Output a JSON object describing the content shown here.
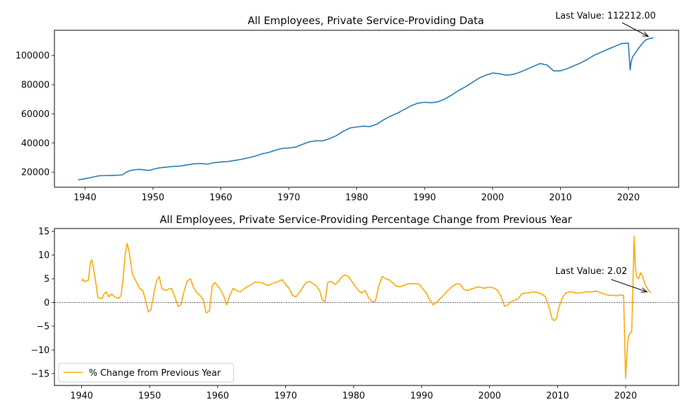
{
  "chart_data": [
    {
      "type": "line",
      "title": "All Employees, Private Service-Providing Data",
      "xlabel": "",
      "ylabel": "",
      "xlim": [
        1935.5,
        2027.4
      ],
      "ylim": [
        9700,
        117300
      ],
      "x_ticks": [
        1940,
        1950,
        1960,
        1970,
        1980,
        1990,
        2000,
        2010,
        2020
      ],
      "y_ticks": [
        20000,
        40000,
        60000,
        80000,
        100000
      ],
      "y_tick_labels": [
        "20000",
        "40000",
        "60000",
        "80000",
        "100000"
      ],
      "grid": false,
      "color": "#1f77b4",
      "annotation": {
        "text": "Last Value: 112212.00",
        "x": 2023.7,
        "y": 112212
      },
      "series": [
        {
          "name": "Private Service-Providing",
          "x": [
            1939.0,
            1940.0,
            1941.0,
            1942.0,
            1943.0,
            1944.0,
            1945.0,
            1945.5,
            1946.0,
            1946.5,
            1947.0,
            1948.0,
            1949.0,
            1949.6,
            1950.0,
            1951.0,
            1952.0,
            1953.0,
            1954.0,
            1955.0,
            1956.0,
            1957.0,
            1958.0,
            1959.0,
            1960.0,
            1961.0,
            1962.0,
            1963.0,
            1964.0,
            1965.0,
            1966.0,
            1967.0,
            1968.0,
            1969.0,
            1970.0,
            1971.0,
            1972.0,
            1973.0,
            1974.0,
            1975.0,
            1976.0,
            1977.0,
            1978.0,
            1979.0,
            1980.0,
            1981.0,
            1982.0,
            1983.0,
            1984.0,
            1985.0,
            1986.0,
            1987.0,
            1988.0,
            1989.0,
            1990.0,
            1991.0,
            1992.0,
            1993.0,
            1994.0,
            1995.0,
            1996.0,
            1997.0,
            1998.0,
            1999.0,
            2000.0,
            2001.0,
            2002.0,
            2003.0,
            2004.0,
            2005.0,
            2006.0,
            2007.0,
            2008.0,
            2009.0,
            2010.0,
            2011.0,
            2012.0,
            2013.0,
            2014.0,
            2015.0,
            2016.0,
            2017.0,
            2018.0,
            2019.0,
            2020.0,
            2020.25,
            2020.4,
            2020.6,
            2021.0,
            2021.5,
            2022.0,
            2022.5,
            2023.0,
            2023.7
          ],
          "values": [
            14800,
            15500,
            16500,
            17500,
            17700,
            17800,
            18000,
            18200,
            19800,
            20900,
            21500,
            21900,
            21400,
            21200,
            22000,
            23000,
            23500,
            24000,
            24200,
            25000,
            25700,
            26000,
            25500,
            26500,
            27000,
            27300,
            28000,
            28800,
            29800,
            31000,
            32500,
            33500,
            35000,
            36300,
            36600,
            37200,
            39000,
            40800,
            41500,
            41500,
            43000,
            45000,
            48000,
            50300,
            51000,
            51600,
            51300,
            53000,
            56000,
            58500,
            60500,
            63000,
            65500,
            67300,
            68000,
            67600,
            68300,
            70200,
            73000,
            76000,
            78500,
            81500,
            84500,
            86500,
            88000,
            87500,
            86500,
            87000,
            88500,
            90500,
            92500,
            94500,
            93500,
            89500,
            89500,
            91000,
            93000,
            95000,
            97500,
            100300,
            102300,
            104300,
            106300,
            108200,
            108500,
            90000,
            95500,
            99000,
            101500,
            105000,
            108000,
            110500,
            111500,
            112212
          ]
        }
      ]
    },
    {
      "type": "line",
      "title": "All Employees, Private Service-Providing Percentage Change from Previous Year",
      "xlabel": "",
      "ylabel": "",
      "xlim": [
        1936.0,
        2027.8
      ],
      "ylim": [
        -17.5,
        15.6
      ],
      "x_ticks": [
        1940,
        1950,
        1960,
        1970,
        1980,
        1990,
        2000,
        2010,
        2020
      ],
      "y_ticks": [
        -15,
        -10,
        -5,
        0,
        5,
        10,
        15
      ],
      "y_tick_labels": [
        "−15",
        "−10",
        "−5",
        "0",
        "5",
        "10",
        "15"
      ],
      "grid": false,
      "color": "#ffa500",
      "zero_line": true,
      "legend": {
        "label": "% Change from Previous Year",
        "placement": "lower-left"
      },
      "annotation": {
        "text": "Last Value: 2.02",
        "x": 2023.7,
        "y": 2.02
      },
      "series": [
        {
          "name": "% Change from Previous Year",
          "x": [
            1940.0,
            1940.2,
            1940.4,
            1941.0,
            1941.3,
            1941.5,
            1941.7,
            1942.0,
            1942.4,
            1943.0,
            1943.3,
            1943.6,
            1944.0,
            1944.4,
            1945.0,
            1945.5,
            1945.8,
            1946.1,
            1946.4,
            1946.7,
            1947.0,
            1947.5,
            1948.0,
            1948.5,
            1949.0,
            1949.4,
            1949.8,
            1950.2,
            1950.7,
            1951.0,
            1951.4,
            1951.8,
            1952.3,
            1952.8,
            1953.2,
            1953.7,
            1954.2,
            1954.6,
            1955.0,
            1955.5,
            1956.0,
            1956.5,
            1957.0,
            1957.4,
            1957.9,
            1958.3,
            1958.8,
            1959.2,
            1959.6,
            1960.0,
            1960.5,
            1961.0,
            1961.3,
            1961.8,
            1962.3,
            1962.8,
            1963.3,
            1963.8,
            1964.3,
            1965.0,
            1965.5,
            1966.0,
            1966.5,
            1967.0,
            1967.5,
            1968.0,
            1968.5,
            1969.0,
            1969.5,
            1970.0,
            1970.5,
            1971.0,
            1971.5,
            1972.0,
            1972.5,
            1973.0,
            1973.5,
            1974.0,
            1974.5,
            1975.0,
            1975.4,
            1975.8,
            1976.2,
            1976.7,
            1977.2,
            1977.7,
            1978.2,
            1978.7,
            1979.2,
            1979.7,
            1980.2,
            1980.7,
            1981.2,
            1981.7,
            1982.2,
            1982.7,
            1983.2,
            1983.7,
            1984.2,
            1984.7,
            1985.2,
            1985.7,
            1986.2,
            1986.7,
            1987.2,
            1987.7,
            1988.2,
            1988.7,
            1989.2,
            1989.7,
            1990.2,
            1990.7,
            1991.2,
            1991.7,
            1992.2,
            1992.7,
            1993.2,
            1993.7,
            1994.2,
            1994.7,
            1995.2,
            1995.7,
            1996.2,
            1996.7,
            1997.2,
            1997.7,
            1998.2,
            1998.7,
            1999.2,
            1999.7,
            2000.2,
            2000.7,
            2001.2,
            2001.7,
            2002.2,
            2002.7,
            2003.2,
            2003.7,
            2004.2,
            2004.7,
            2005.2,
            2005.7,
            2006.2,
            2006.7,
            2007.2,
            2007.7,
            2008.2,
            2008.7,
            2009.2,
            2009.5,
            2009.8,
            2010.2,
            2010.7,
            2011.2,
            2011.7,
            2012.2,
            2012.7,
            2013.2,
            2013.7,
            2014.2,
            2014.7,
            2015.2,
            2015.7,
            2016.2,
            2016.7,
            2017.2,
            2017.7,
            2018.2,
            2018.7,
            2019.2,
            2019.7,
            2020.0,
            2020.15,
            2020.3,
            2020.45,
            2020.7,
            2020.9,
            2021.1,
            2021.25,
            2021.4,
            2021.6,
            2021.9,
            2022.2,
            2022.5,
            2022.8,
            2023.1,
            2023.4,
            2023.7
          ],
          "values": [
            4.5,
            4.9,
            4.4,
            4.7,
            8.5,
            9.0,
            7.5,
            5.0,
            1.0,
            0.8,
            1.8,
            2.2,
            1.2,
            1.8,
            1.0,
            0.9,
            1.5,
            5.0,
            10.0,
            12.5,
            10.5,
            5.8,
            4.5,
            3.0,
            2.5,
            0.5,
            -2.0,
            -1.5,
            2.5,
            4.5,
            5.5,
            3.0,
            2.5,
            2.8,
            3.0,
            1.2,
            -0.8,
            -0.5,
            2.0,
            4.5,
            5.0,
            3.0,
            2.0,
            1.5,
            0.5,
            -2.2,
            -1.8,
            3.5,
            4.2,
            3.5,
            2.5,
            1.0,
            -0.5,
            1.5,
            3.0,
            2.5,
            2.2,
            2.8,
            3.3,
            3.8,
            4.3,
            4.2,
            4.2,
            3.8,
            3.6,
            4.0,
            4.2,
            4.5,
            4.8,
            3.8,
            3.0,
            1.5,
            1.2,
            2.0,
            3.2,
            4.2,
            4.5,
            4.0,
            3.5,
            2.5,
            0.5,
            0.2,
            4.2,
            4.5,
            3.8,
            4.3,
            5.3,
            5.8,
            5.5,
            4.5,
            3.5,
            2.5,
            2.0,
            2.5,
            1.0,
            0.2,
            0.3,
            3.5,
            5.5,
            5.0,
            4.8,
            4.2,
            3.5,
            3.3,
            3.5,
            3.8,
            4.0,
            3.9,
            4.0,
            3.8,
            2.8,
            2.0,
            0.5,
            -0.5,
            0.0,
            0.8,
            1.5,
            2.3,
            3.0,
            3.6,
            4.0,
            3.8,
            2.8,
            2.5,
            2.8,
            3.0,
            3.3,
            3.2,
            3.0,
            3.2,
            3.2,
            3.0,
            2.5,
            1.2,
            -0.8,
            -0.5,
            0.2,
            0.5,
            0.8,
            1.8,
            2.0,
            2.0,
            2.2,
            2.2,
            2.0,
            1.8,
            1.2,
            -0.8,
            -3.5,
            -3.8,
            -3.5,
            -1.0,
            1.0,
            2.0,
            2.2,
            2.2,
            2.0,
            2.0,
            2.1,
            2.3,
            2.2,
            2.3,
            2.4,
            2.1,
            1.9,
            1.6,
            1.5,
            1.5,
            1.4,
            1.6,
            1.5,
            -16.0,
            -12.0,
            -8.5,
            -7.0,
            -6.5,
            -6.0,
            5.0,
            14.0,
            8.0,
            5.5,
            5.0,
            6.3,
            5.5,
            4.0,
            3.2,
            2.5,
            2.02
          ]
        }
      ]
    }
  ]
}
